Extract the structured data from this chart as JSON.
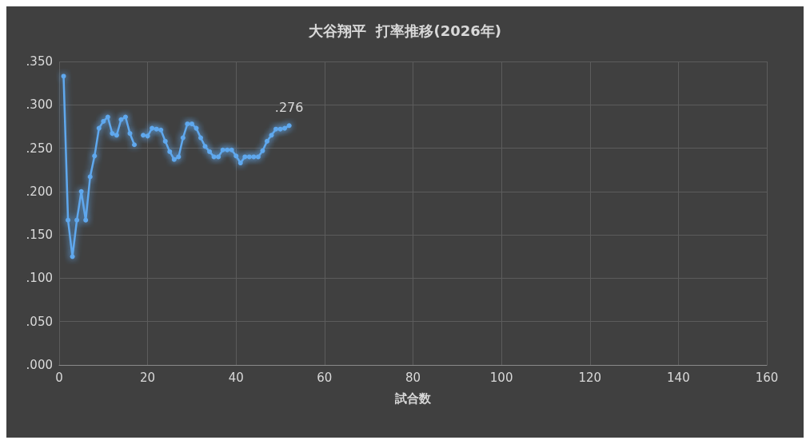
{
  "chart_data": {
    "type": "line",
    "title": "大谷翔平  打率推移(2026年)",
    "xlabel": "試合数",
    "x": [
      1,
      2,
      3,
      4,
      5,
      6,
      7,
      8,
      9,
      10,
      11,
      12,
      13,
      14,
      15,
      16,
      17,
      18,
      19,
      20,
      21,
      22,
      23,
      24,
      25,
      26,
      27,
      28,
      29,
      30,
      31,
      32,
      33,
      34,
      35,
      36,
      37,
      38,
      39,
      40,
      41,
      42,
      43,
      44,
      45,
      46,
      47,
      48,
      49,
      50,
      51,
      52
    ],
    "series": [
      {
        "color": "#5fa8ee",
        "values": [
          0.333,
          0.167,
          0.125,
          0.167,
          0.2,
          0.167,
          0.217,
          0.241,
          0.273,
          0.281,
          0.286,
          0.267,
          0.265,
          0.283,
          0.286,
          0.267,
          0.254,
          null,
          0.265,
          0.264,
          0.273,
          0.272,
          0.271,
          0.258,
          0.246,
          0.237,
          0.24,
          0.262,
          0.278,
          0.278,
          0.273,
          0.262,
          0.252,
          0.246,
          0.24,
          0.24,
          0.248,
          0.248,
          0.248,
          0.241,
          0.233,
          0.24,
          0.24,
          0.24,
          0.24,
          0.247,
          0.258,
          0.265,
          0.272,
          0.272,
          0.273,
          0.276
        ],
        "value_labels": [
          null,
          null,
          null,
          null,
          null,
          null,
          null,
          null,
          null,
          null,
          null,
          null,
          null,
          null,
          null,
          null,
          null,
          null,
          null,
          null,
          null,
          null,
          null,
          null,
          null,
          null,
          null,
          null,
          null,
          null,
          null,
          null,
          null,
          null,
          null,
          null,
          null,
          null,
          null,
          null,
          null,
          null,
          null,
          null,
          null,
          null,
          null,
          null,
          null,
          null,
          null,
          ".276"
        ]
      }
    ],
    "xlim": [
      0,
      160
    ],
    "xticks": [
      0,
      20,
      40,
      60,
      80,
      100,
      120,
      140,
      160
    ],
    "ylim": [
      0,
      0.35
    ],
    "yticks": [
      {
        "value": 0,
        "label": ".000"
      },
      {
        "value": 0.05,
        "label": ".050"
      },
      {
        "value": 0.1,
        "label": ".100"
      },
      {
        "value": 0.15,
        "label": ".150"
      },
      {
        "value": 0.2,
        "label": ".200"
      },
      {
        "value": 0.25,
        "label": ".250"
      },
      {
        "value": 0.3,
        "label": ".300"
      },
      {
        "value": 0.35,
        "label": ".350"
      }
    ],
    "grid": true,
    "marker": "circle",
    "line_style": "solid"
  }
}
